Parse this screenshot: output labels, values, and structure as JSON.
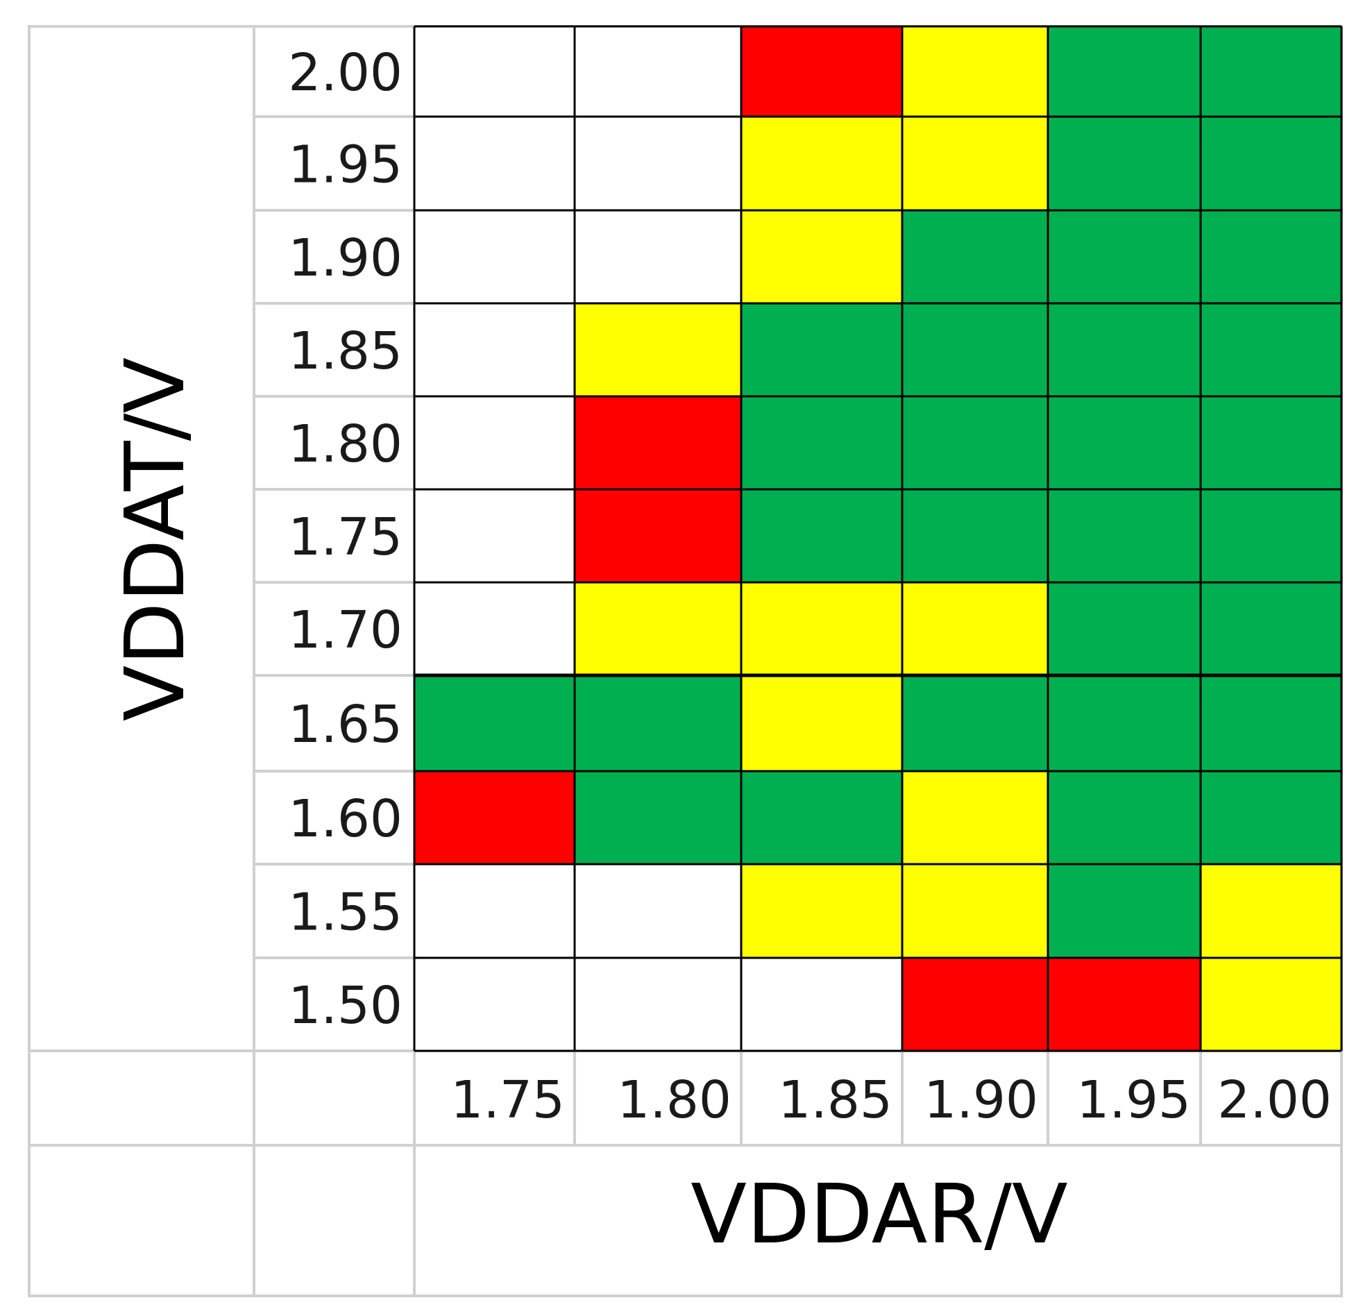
{
  "chart_data": {
    "type": "heatmap",
    "title": "",
    "xlabel": "VDDAR/V",
    "ylabel": "VDDAT/V",
    "x_ticks": [
      "1.75",
      "1.80",
      "1.85",
      "1.90",
      "1.95",
      "2.00"
    ],
    "y_ticks": [
      "2.00",
      "1.95",
      "1.90",
      "1.85",
      "1.80",
      "1.75",
      "1.70",
      "1.65",
      "1.60",
      "1.55",
      "1.50"
    ],
    "category_colors": {
      "none": "#ffffff",
      "red": "#ff0000",
      "yellow": "#ffff00",
      "green": "#00b050"
    },
    "cells": [
      [
        "none",
        "none",
        "red",
        "yellow",
        "green",
        "green"
      ],
      [
        "none",
        "none",
        "yellow",
        "yellow",
        "green",
        "green"
      ],
      [
        "none",
        "none",
        "yellow",
        "green",
        "green",
        "green"
      ],
      [
        "none",
        "yellow",
        "green",
        "green",
        "green",
        "green"
      ],
      [
        "none",
        "red",
        "green",
        "green",
        "green",
        "green"
      ],
      [
        "none",
        "red",
        "green",
        "green",
        "green",
        "green"
      ],
      [
        "none",
        "yellow",
        "yellow",
        "yellow",
        "green",
        "green"
      ],
      [
        "green",
        "green",
        "yellow",
        "green",
        "green",
        "green"
      ],
      [
        "red",
        "green",
        "green",
        "yellow",
        "green",
        "green"
      ],
      [
        "none",
        "none",
        "yellow",
        "yellow",
        "green",
        "yellow"
      ],
      [
        "none",
        "none",
        "none",
        "red",
        "red",
        "yellow"
      ]
    ]
  }
}
